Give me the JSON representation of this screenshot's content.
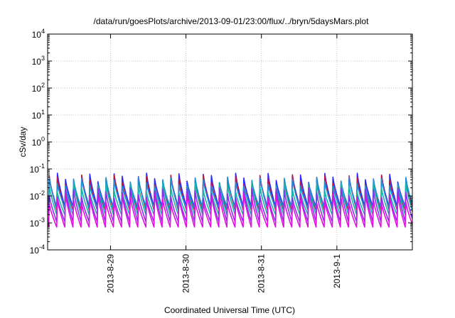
{
  "chart_data": {
    "type": "line",
    "title": "/data/run/goesPlots/archive/2013-09-01/23:00/flux/../bryn/5daysMars.plot",
    "xlabel": "Coordinated Universal Time (UTC)",
    "ylabel": "cSv/day",
    "y_scale": "log",
    "ylim": [
      0.0001,
      10000
    ],
    "y_ticks": [
      {
        "value": 0.0001,
        "base": "10",
        "exp": "-4"
      },
      {
        "value": 0.001,
        "base": "10",
        "exp": "-3"
      },
      {
        "value": 0.01,
        "base": "10",
        "exp": "-2"
      },
      {
        "value": 0.1,
        "base": "10",
        "exp": "-1"
      },
      {
        "value": 1,
        "base": "10",
        "exp": "0"
      },
      {
        "value": 10,
        "base": "10",
        "exp": "1"
      },
      {
        "value": 100,
        "base": "10",
        "exp": "2"
      },
      {
        "value": 1000,
        "base": "10",
        "exp": "3"
      },
      {
        "value": 10000,
        "base": "10",
        "exp": "4"
      }
    ],
    "xlim": [
      "2013-08-28 04:00",
      "2013-09-02 00:00"
    ],
    "x_ticks": [
      "2013-8-29",
      "2013-8-30",
      "2013-8-31",
      "2013-9-1"
    ],
    "x_tick_values": [
      "2013-08-29",
      "2013-08-30",
      "2013-08-31",
      "2013-09-01"
    ],
    "grid": true,
    "pattern": "sawtooth, about 9 cycles per day; each cycle rises sharply to a peak then decays",
    "series": [
      {
        "color": "#2b2bff",
        "peak": 0.07,
        "trough": 0.004
      },
      {
        "color": "#c0143c",
        "peak": 0.06,
        "trough": 0.003
      },
      {
        "color": "#1f8ed6",
        "peak": 0.05,
        "trough": 0.0035
      },
      {
        "color": "#16b6a8",
        "peak": 0.03,
        "trough": 0.002
      },
      {
        "color": "#8e2cf0",
        "peak": 0.02,
        "trough": 0.0011
      },
      {
        "color": "#e010e0",
        "peak": 0.012,
        "trough": 0.0007
      }
    ]
  }
}
